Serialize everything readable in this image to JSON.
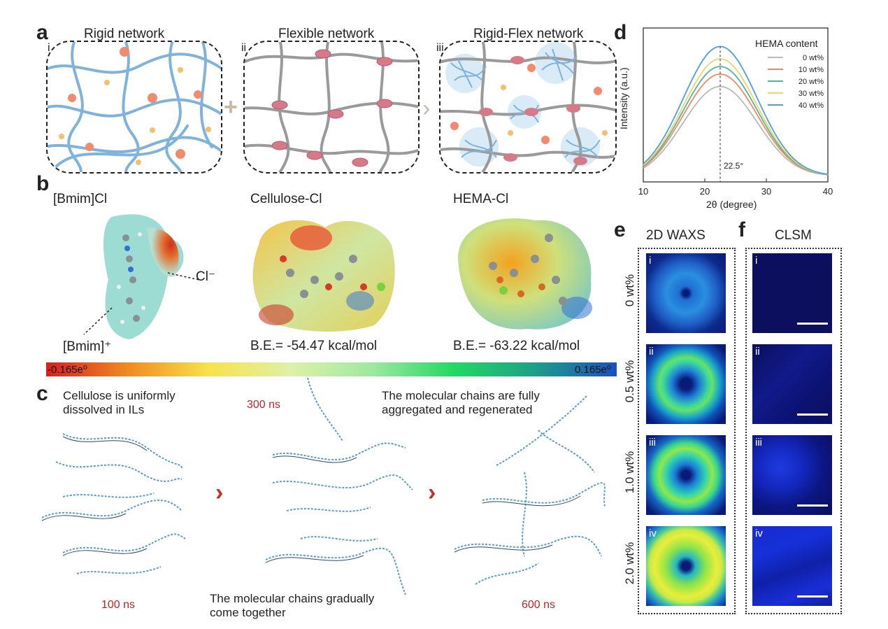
{
  "panel_letters": {
    "a": "a",
    "b": "b",
    "c": "c",
    "d": "d",
    "e": "e",
    "f": "f"
  },
  "panel_a": {
    "networks": [
      {
        "roman": "i",
        "title": "Rigid network"
      },
      {
        "roman": "ii",
        "title": "Flexible network"
      },
      {
        "roman": "iii",
        "title": "Rigid-Flex network"
      }
    ],
    "plus_symbol": "+",
    "arrow_symbol": "›"
  },
  "panel_b": {
    "molecules": [
      {
        "name": "[Bmim]Cl",
        "annotations": [
          "Cl⁻",
          "[Bmim]⁺"
        ]
      },
      {
        "name": "Cellulose-Cl",
        "binding_energy": "B.E.= -54.47 kcal/mol"
      },
      {
        "name": "HEMA-Cl",
        "binding_energy": "B.E.= -63.22 kcal/mol"
      }
    ],
    "colorbar": {
      "min_label": "-0.165e⁰",
      "max_label": "0.165e⁰",
      "colors": [
        "#d81e1e",
        "#f08a24",
        "#f7e34a",
        "#dff0a8",
        "#9ee8a0",
        "#23d864",
        "#1e9f88",
        "#1a4fc1"
      ]
    }
  },
  "panel_c": {
    "snapshots": [
      {
        "time": "100 ns",
        "caption": "Cellulose is uniformly dissolved in ILs"
      },
      {
        "time": "300 ns",
        "caption": "The molecular chains gradually come together"
      },
      {
        "time": "600 ns",
        "caption": "The molecular chains are fully aggregated and regenerated"
      }
    ],
    "chevron": "›"
  },
  "chart_data": {
    "type": "line",
    "xlabel": "2θ (degree)",
    "ylabel": "Intensity (a.u.)",
    "xlim": [
      10,
      40
    ],
    "xticks": [
      10,
      20,
      30,
      40
    ],
    "legend_title": "HEMA content",
    "legend_position": "top-right",
    "peak_annotation": "22.5°",
    "peak_x": 22.5,
    "series": [
      {
        "name": "0 wt%",
        "color": "#b9b9b9",
        "peak": 0.62
      },
      {
        "name": "10 wt%",
        "color": "#ef8a62",
        "peak": 0.7
      },
      {
        "name": "20 wt%",
        "color": "#4fb89a",
        "peak": 0.75
      },
      {
        "name": "30 wt%",
        "color": "#f2d36b",
        "peak": 0.8
      },
      {
        "name": "40 wt%",
        "color": "#4f9fd8",
        "peak": 0.88
      }
    ]
  },
  "panel_e": {
    "title": "2D WAXS",
    "rows": [
      {
        "roman": "i",
        "label": "0 wt%"
      },
      {
        "roman": "ii",
        "label": "0.5 wt%"
      },
      {
        "roman": "iii",
        "label": "1.0 wt%"
      },
      {
        "roman": "iv",
        "label": "2.0 wt%"
      }
    ]
  },
  "panel_f": {
    "title": "CLSM",
    "rows": [
      {
        "roman": "i"
      },
      {
        "roman": "ii"
      },
      {
        "roman": "iii"
      },
      {
        "roman": "iv"
      }
    ]
  }
}
